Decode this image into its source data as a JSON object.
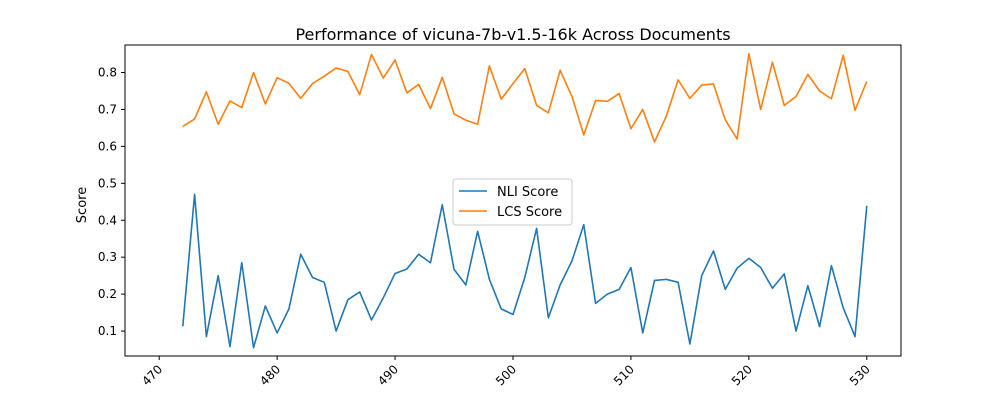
{
  "chart_data": {
    "type": "line",
    "title": "Performance of vicuna-7b-v1.5-16k Across Documents",
    "xlabel": "",
    "ylabel": "Score",
    "xlim": [
      467.1,
      532.9
    ],
    "ylim": [
      0.0325,
      0.8745
    ],
    "xticks": [
      470,
      480,
      490,
      500,
      510,
      520,
      530
    ],
    "yticks": [
      0.1,
      0.2,
      0.3,
      0.4,
      0.5,
      0.6,
      0.7,
      0.8
    ],
    "xtick_labels": [
      "470",
      "480",
      "490",
      "500",
      "510",
      "520",
      "530"
    ],
    "ytick_labels": [
      "0.1",
      "0.2",
      "0.3",
      "0.4",
      "0.5",
      "0.6",
      "0.7",
      "0.8"
    ],
    "grid": false,
    "legend_position": "center",
    "x": [
      472,
      473,
      474,
      475,
      476,
      477,
      478,
      479,
      480,
      481,
      482,
      483,
      484,
      485,
      486,
      487,
      488,
      489,
      490,
      491,
      492,
      493,
      494,
      495,
      496,
      497,
      498,
      499,
      500,
      501,
      502,
      503,
      504,
      505,
      506,
      507,
      508,
      509,
      510,
      511,
      512,
      513,
      514,
      515,
      516,
      517,
      518,
      519,
      520,
      521,
      522,
      523,
      524,
      525,
      526,
      527,
      528,
      529,
      530
    ],
    "series": [
      {
        "name": "NLI Score",
        "color": "#1f77b4",
        "values": [
          0.113,
          0.47,
          0.085,
          0.25,
          0.058,
          0.285,
          0.055,
          0.168,
          0.095,
          0.16,
          0.308,
          0.245,
          0.232,
          0.1,
          0.185,
          0.206,
          0.13,
          0.19,
          0.256,
          0.268,
          0.308,
          0.285,
          0.442,
          0.267,
          0.225,
          0.37,
          0.24,
          0.16,
          0.145,
          0.245,
          0.378,
          0.136,
          0.225,
          0.29,
          0.388,
          0.175,
          0.2,
          0.213,
          0.272,
          0.095,
          0.237,
          0.24,
          0.232,
          0.065,
          0.25,
          0.317,
          0.213,
          0.27,
          0.297,
          0.272,
          0.216,
          0.255,
          0.1,
          0.223,
          0.112,
          0.277,
          0.163,
          0.085,
          0.439
        ]
      },
      {
        "name": "LCS Score",
        "color": "#ff7f0e",
        "values": [
          0.654,
          0.674,
          0.748,
          0.66,
          0.723,
          0.705,
          0.8,
          0.715,
          0.786,
          0.771,
          0.73,
          0.77,
          0.79,
          0.812,
          0.803,
          0.74,
          0.849,
          0.785,
          0.834,
          0.745,
          0.768,
          0.702,
          0.787,
          0.688,
          0.671,
          0.66,
          0.818,
          0.728,
          0.77,
          0.811,
          0.711,
          0.691,
          0.806,
          0.735,
          0.631,
          0.724,
          0.722,
          0.743,
          0.648,
          0.7,
          0.612,
          0.682,
          0.78,
          0.73,
          0.766,
          0.769,
          0.672,
          0.62,
          0.851,
          0.7,
          0.828,
          0.711,
          0.735,
          0.795,
          0.75,
          0.729,
          0.847,
          0.698,
          0.776
        ]
      }
    ]
  }
}
